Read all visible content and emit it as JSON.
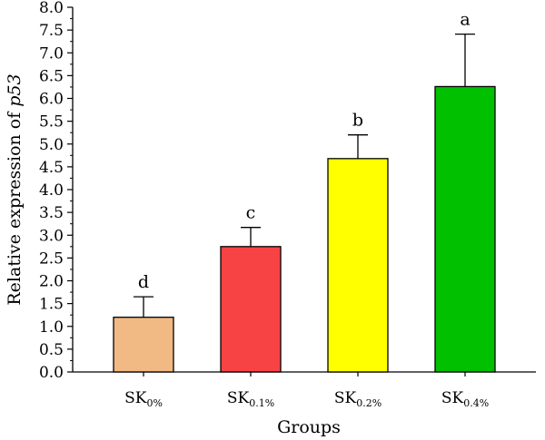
{
  "chart_data": {
    "type": "bar",
    "xlabel": "Groups",
    "ylabel_prefix": "Relative expression of ",
    "ylabel_gene": "p53",
    "ylim": [
      0,
      8
    ],
    "ytick_step": 0.5,
    "ytick_labels": [
      "0.0",
      "0.5",
      "1.0",
      "1.5",
      "2.0",
      "2.5",
      "3.0",
      "3.5",
      "4.0",
      "4.5",
      "5.0",
      "5.5",
      "6.0",
      "6.5",
      "7.0",
      "7.5",
      "8.0"
    ],
    "grid": false,
    "bars": [
      {
        "label_main": "SK",
        "label_sub": "0%",
        "value": 1.2,
        "error": 0.45,
        "significance": "d",
        "color": "#F1B983"
      },
      {
        "label_main": "SK",
        "label_sub": "0.1%",
        "value": 2.75,
        "error": 0.42,
        "significance": "c",
        "color": "#F84344"
      },
      {
        "label_main": "SK",
        "label_sub": "0.2%",
        "value": 4.68,
        "error": 0.52,
        "significance": "b",
        "color": "#FFFF00"
      },
      {
        "label_main": "SK",
        "label_sub": "0.4%",
        "value": 6.26,
        "error": 1.15,
        "significance": "a",
        "color": "#00C000"
      }
    ]
  }
}
